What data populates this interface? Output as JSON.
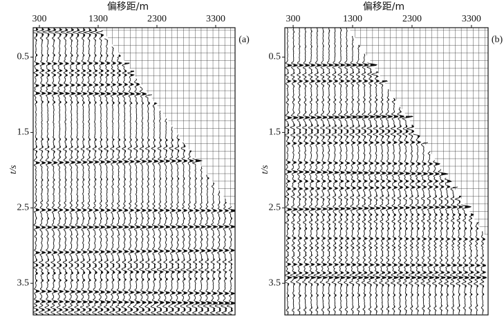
{
  "chart_data": [
    {
      "type": "wiggle",
      "x_label": "偏移距/m",
      "y_label": "t/s",
      "panel_label": "(a)",
      "xlim": [
        194,
        3630
      ],
      "xticks": [
        300,
        1300,
        2300,
        3300
      ],
      "ylim": [
        0.11,
        3.92
      ],
      "yticks": [
        0.5,
        1.5,
        2.5,
        3.5
      ],
      "y_inverted": true,
      "grid": true
    },
    {
      "type": "wiggle",
      "x_label": "偏移距/m",
      "y_label": "t/s",
      "panel_label": "(b)",
      "xlim": [
        160,
        3580
      ],
      "xticks": [
        300,
        1300,
        2300,
        3300
      ],
      "ylim": [
        0.11,
        3.92
      ],
      "yticks": [
        0.5,
        1.5,
        2.5,
        3.5
      ],
      "y_inverted": true,
      "grid": true
    }
  ]
}
